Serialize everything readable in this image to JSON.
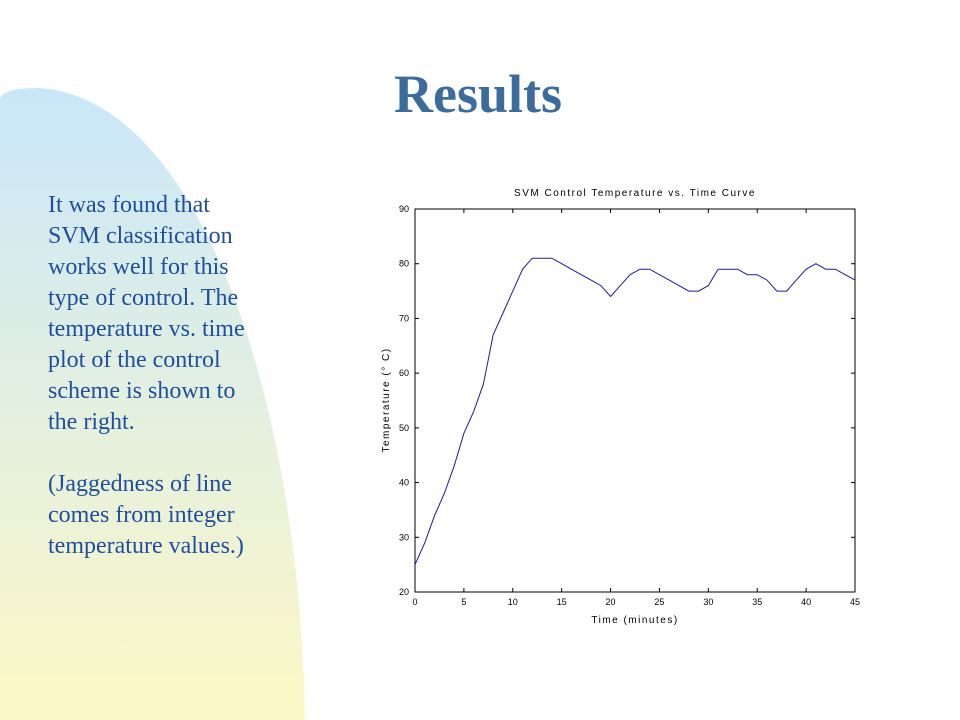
{
  "slide": {
    "title": "Results",
    "body": [
      [
        "It was found that",
        "SVM classification",
        "works well for this",
        "type of control.  The",
        "temperature vs. time",
        "plot of the control",
        "scheme is shown to",
        "the right."
      ],
      [
        "(Jaggedness of line",
        "comes from integer",
        "temperature values.)"
      ]
    ]
  },
  "chart_data": {
    "type": "line",
    "title": "SVM Control Temperature vs. Time Curve",
    "x_label": "Time (minutes)",
    "y_label": "Temperature (° C)",
    "x": [
      0,
      1,
      2,
      3,
      4,
      5,
      6,
      7,
      8,
      9,
      10,
      11,
      12,
      13,
      14,
      15,
      16,
      17,
      18,
      19,
      20,
      21,
      22,
      23,
      24,
      25,
      26,
      27,
      28,
      29,
      30,
      31,
      32,
      33,
      34,
      35,
      36,
      37,
      38,
      39,
      40,
      41,
      42,
      43,
      44,
      45
    ],
    "values": [
      25,
      29,
      34,
      38,
      43,
      49,
      53,
      58,
      67,
      71,
      75,
      79,
      81,
      81,
      81,
      80,
      79,
      78,
      77,
      76,
      74,
      76,
      78,
      79,
      79,
      78,
      77,
      76,
      75,
      75,
      76,
      79,
      79,
      79,
      78,
      78,
      77,
      75,
      75,
      77,
      79,
      80,
      79,
      79,
      78,
      77
    ],
    "color": "#1a1aa0",
    "xlim": [
      0,
      45
    ],
    "xticks": [
      0,
      5,
      10,
      15,
      20,
      25,
      30,
      35,
      40,
      45
    ],
    "ylim": [
      20,
      90
    ],
    "yticks": [
      20,
      30,
      40,
      50,
      60,
      70,
      80,
      90
    ]
  }
}
